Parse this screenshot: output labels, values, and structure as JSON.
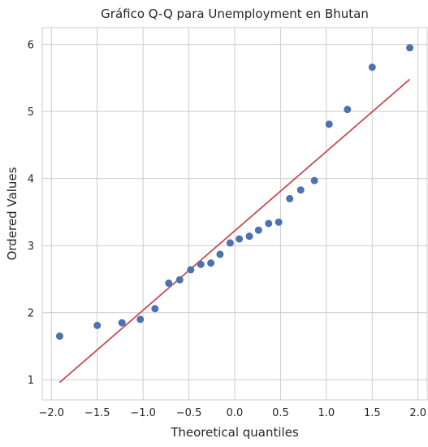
{
  "chart_data": {
    "type": "scatter",
    "title": "Gráfico Q-Q para Unemployment en Bhutan",
    "xlabel": "Theoretical quantiles",
    "ylabel": "Ordered Values",
    "xlim": [
      -2.1,
      2.1
    ],
    "ylim": [
      0.7,
      6.25
    ],
    "x_ticks": [
      -2.0,
      -1.5,
      -1.0,
      -0.5,
      0.0,
      0.5,
      1.0,
      1.5,
      2.0
    ],
    "x_tick_labels": [
      "−2.0",
      "−1.5",
      "−1.0",
      "−0.5",
      "0.0",
      "0.5",
      "1.0",
      "1.5",
      "2.0"
    ],
    "y_ticks": [
      1,
      2,
      3,
      4,
      5,
      6
    ],
    "y_tick_labels": [
      "1",
      "2",
      "3",
      "4",
      "5",
      "6"
    ],
    "grid": true,
    "points": {
      "color": "#4c72b0",
      "x": [
        -1.91,
        -1.5,
        -1.23,
        -1.03,
        -0.87,
        -0.72,
        -0.6,
        -0.48,
        -0.37,
        -0.26,
        -0.16,
        -0.05,
        0.05,
        0.16,
        0.26,
        0.37,
        0.48,
        0.6,
        0.72,
        0.87,
        1.03,
        1.23,
        1.5,
        1.91
      ],
      "y": [
        1.65,
        1.81,
        1.85,
        1.9,
        2.06,
        2.44,
        2.49,
        2.64,
        2.72,
        2.74,
        2.87,
        3.04,
        3.1,
        3.14,
        3.23,
        3.33,
        3.35,
        3.7,
        3.83,
        3.97,
        4.81,
        5.03,
        5.66,
        5.95
      ]
    },
    "fit_line": {
      "color": "#c44e52",
      "x": [
        -1.91,
        1.91
      ],
      "y": [
        0.96,
        5.48
      ]
    }
  }
}
